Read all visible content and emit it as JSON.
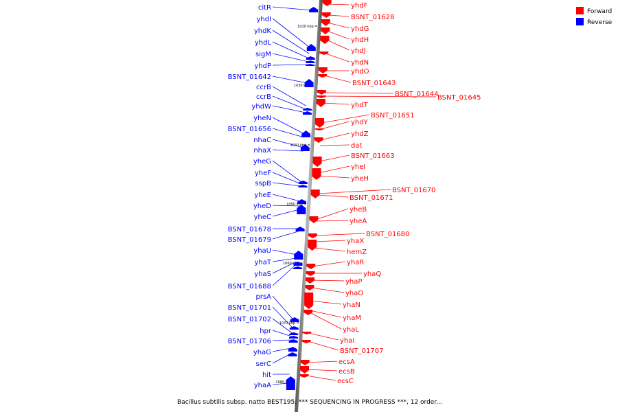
{
  "legend": {
    "forward": {
      "label": "Forward",
      "color": "#ff0000"
    },
    "reverse": {
      "label": "Reverse",
      "color": "#0000ff"
    }
  },
  "caption": "Bacillus subtilis subsp. natto BEST195, *** SEQUENCING IN PROGRESS ***, 12 order...",
  "kbp_marks": [
    "1020 kbp",
    "1030 kbp",
    "1040 kbp",
    "1050 kbp",
    "1060 kbp",
    "1070 kbp",
    "1080 kbp"
  ],
  "reverse_genes": [
    "citR",
    "yhdI",
    "yhdK",
    "yhdL",
    "sigM",
    "yhdP",
    "BSNT_01642",
    "ccrB",
    "ccrB",
    "yhdW",
    "yheN",
    "BSNT_01656",
    "nhaC",
    "nhaX",
    "yheG",
    "yheF",
    "sspB",
    "yheE",
    "yheD",
    "yheC",
    "BSNT_01678",
    "BSNT_01679",
    "yhaU",
    "yhaT",
    "yhaS",
    "BSNT_01688",
    "prsA",
    "BSNT_01701",
    "BSNT_01702",
    "hpr",
    "BSNT_01706",
    "yhaG",
    "serC",
    "hit",
    "yhaA"
  ],
  "forward_genes": [
    "yhdF",
    "BSNT_01628",
    "yhdG",
    "yhdH",
    "yhdJ",
    "yhdN",
    "yhdO",
    "BSNT_01643",
    "BSNT_01644",
    "BSNT_01645",
    "yhdT",
    "BSNT_01651",
    "yhdY",
    "yhdZ",
    "dat",
    "BSNT_01663",
    "yheI",
    "yheH",
    "BSNT_01670",
    "BSNT_01671",
    "yheB",
    "yheA",
    "BSNT_01680",
    "yhaX",
    "hemZ",
    "yhaR",
    "yhaQ",
    "yhaP",
    "yhaO",
    "yhaN",
    "yhaM",
    "yhaL",
    "yhaI",
    "BSNT_01707",
    "ecsA",
    "ecsB",
    "ecsC"
  ]
}
